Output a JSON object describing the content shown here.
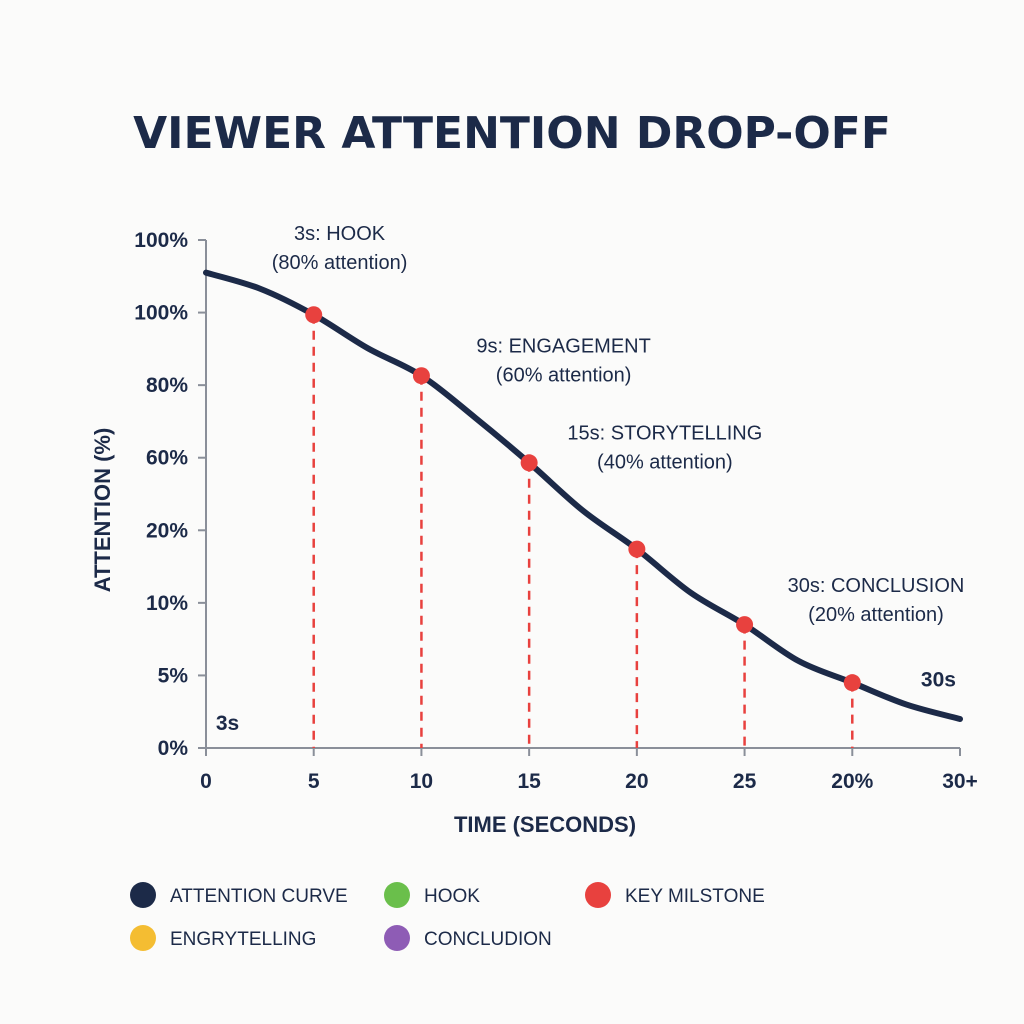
{
  "colors": {
    "curve": "#1c2a48",
    "milestone": "#e8413e",
    "hook": "#6abf4b",
    "engagement": "#f4bd32",
    "conclusion": "#8e5cb5",
    "axis": "#8a8f99"
  },
  "chart_data": {
    "type": "line",
    "title": "VIEWER ATTENTION DROP-OFF",
    "xlabel": "TIME (SECONDS)",
    "ylabel": "ATTENTION (%)",
    "x_tick_labels": [
      "0",
      "5",
      "10",
      "15",
      "20",
      "25",
      "20%",
      "30+"
    ],
    "y_tick_labels": [
      "0%",
      "5%",
      "10%",
      "20%",
      "60%",
      "80%",
      "100%",
      "100%"
    ],
    "xlim": [
      0,
      35
    ],
    "ylim": [
      0,
      7
    ],
    "y_scale_note": "values expressed in tick-index units (each y tick label is one unit)",
    "series": [
      {
        "name": "ATTENTION CURVE",
        "x": [
          0,
          2.5,
          5,
          7.5,
          10,
          12.5,
          15,
          17.5,
          20,
          22.5,
          25,
          27.5,
          30,
          32.5,
          35
        ],
        "y": [
          6.55,
          6.33,
          5.97,
          5.51,
          5.13,
          4.55,
          3.93,
          3.27,
          2.74,
          2.14,
          1.7,
          1.2,
          0.9,
          0.6,
          0.4
        ]
      }
    ],
    "milestones": [
      {
        "x": 5,
        "y": 5.97
      },
      {
        "x": 10,
        "y": 5.13
      },
      {
        "x": 15,
        "y": 3.93
      },
      {
        "x": 20,
        "y": 2.74
      },
      {
        "x": 25,
        "y": 1.7
      },
      {
        "x": 30,
        "y": 0.9
      }
    ],
    "annotations": [
      {
        "line1": "3s: HOOK",
        "line2": "(80% attention)",
        "x": 6.2,
        "y": 7.0
      },
      {
        "line1": "9s: ENGAGEMENT",
        "line2": "(60% attention)",
        "x": 16.6,
        "y": 5.45
      },
      {
        "line1": "15s: STORYTELLING",
        "line2": "(40% attention)",
        "x": 21.3,
        "y": 4.25
      },
      {
        "line1": "30s: CONCLUSION",
        "line2": "(20% attention)",
        "x": 31.1,
        "y": 2.15
      }
    ],
    "corner_labels": [
      {
        "text": "3s",
        "x": 1.0,
        "y": 0.25
      },
      {
        "text": "30s",
        "x": 34.0,
        "y": 0.85
      }
    ],
    "legend": [
      {
        "label": "ATTENTION CURVE",
        "color": "#1c2a48"
      },
      {
        "label": "HOOK",
        "color": "#6abf4b"
      },
      {
        "label": "KEY MILSTONE",
        "color": "#e8413e"
      },
      {
        "label": "ENGRYTELLING",
        "color": "#f4bd32"
      },
      {
        "label": "CONCLUDION",
        "color": "#8e5cb5"
      }
    ],
    "legend_position": "bottom",
    "grid": false
  }
}
